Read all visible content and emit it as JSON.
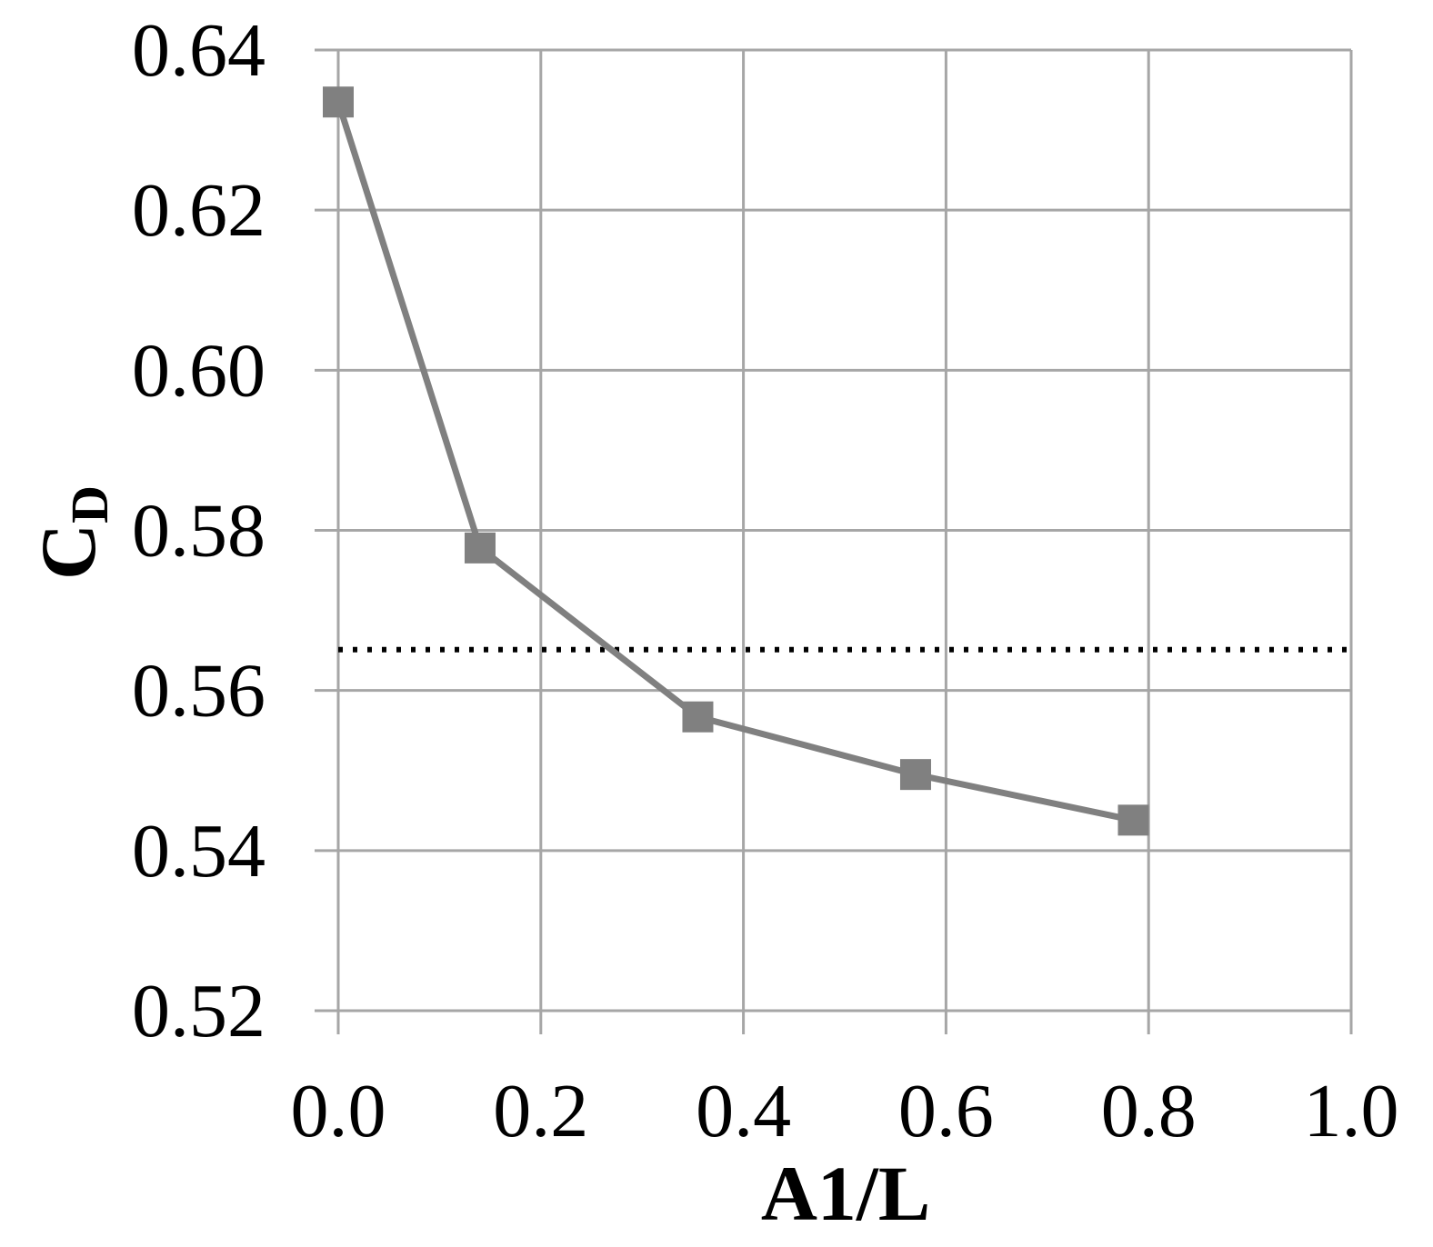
{
  "chart_data": {
    "type": "line",
    "xlabel": "A1/L",
    "ylabel": {
      "main": "C",
      "subscript": "D"
    },
    "xlim": [
      0.0,
      1.0
    ],
    "ylim": [
      0.52,
      0.64
    ],
    "x_ticks": [
      "0.0",
      "0.2",
      "0.4",
      "0.6",
      "0.8",
      "1.0"
    ],
    "y_ticks": [
      "0.52",
      "0.54",
      "0.56",
      "0.58",
      "0.60",
      "0.62",
      "0.64"
    ],
    "grid": true,
    "series": [
      {
        "marker": "square",
        "color": "#808080",
        "x": [
          0.0,
          0.14,
          0.355,
          0.57,
          0.785
        ],
        "y": [
          0.6335,
          0.5778,
          0.5567,
          0.5495,
          0.5438
        ]
      }
    ],
    "reference_lines": [
      {
        "orientation": "horizontal",
        "style": "dotted",
        "color": "#000000",
        "y": 0.5651
      }
    ]
  }
}
